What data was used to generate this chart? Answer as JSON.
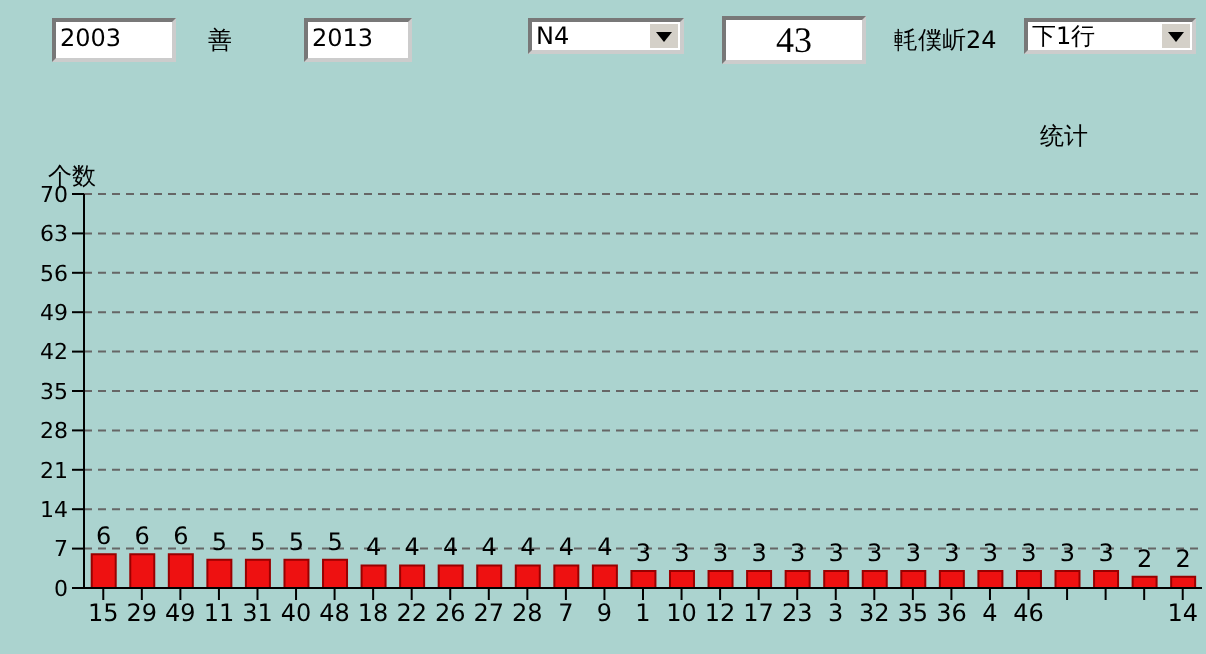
{
  "chart_data": {
    "type": "bar",
    "title": "统计",
    "ylabel": "个数",
    "annotations": [
      "2003",
      "善",
      "2013",
      "N4",
      "43",
      "軞僕岓24",
      "下1行"
    ],
    "categories": [
      "15",
      "29",
      "49",
      "11",
      "31",
      "40",
      "48",
      "18",
      "22",
      "26",
      "27",
      "28",
      "7",
      "9",
      "1",
      "10",
      "12",
      "17",
      "23",
      "3",
      "32",
      "35",
      "36",
      "4",
      "46",
      null,
      null,
      null,
      "14"
    ],
    "values": [
      6,
      6,
      6,
      5,
      5,
      5,
      5,
      4,
      4,
      4,
      4,
      4,
      4,
      4,
      3,
      3,
      3,
      3,
      3,
      3,
      3,
      3,
      3,
      3,
      3,
      3,
      3,
      2,
      2
    ],
    "color": "#ee1111",
    "data_labels": true,
    "ylim": [
      0,
      70
    ],
    "yticks": [
      0,
      7,
      14,
      21,
      28,
      35,
      42,
      49,
      56,
      63,
      70
    ],
    "grid": "y"
  }
}
